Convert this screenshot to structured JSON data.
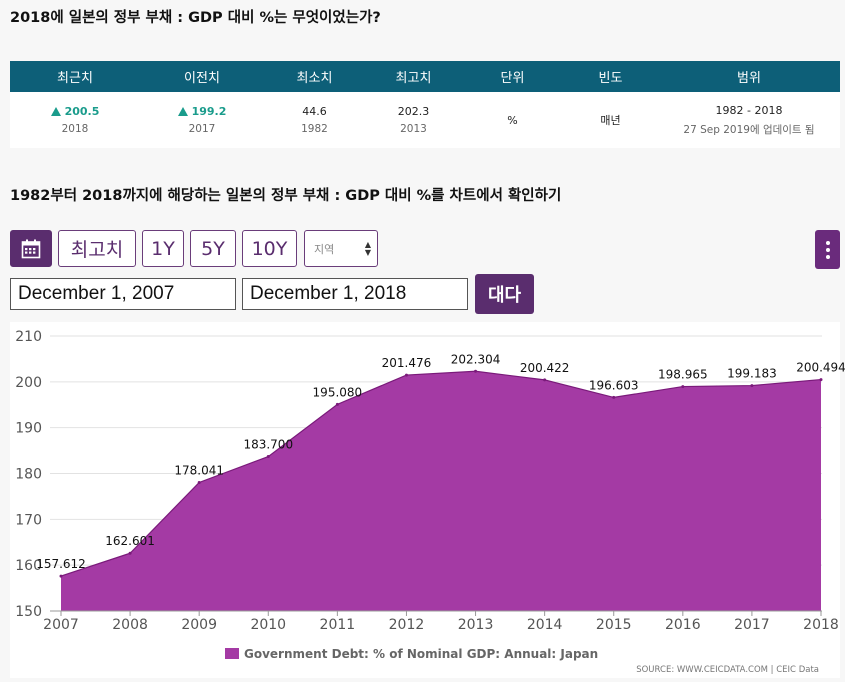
{
  "question_title": "2018에 일본의 정부 부채 : GDP 대비 %는 무엇이었는가?",
  "stats": {
    "headers": [
      "최근치",
      "이전치",
      "최소치",
      "최고치",
      "단위",
      "빈도",
      "범위"
    ],
    "latest": {
      "value": "200.5",
      "year": "2018"
    },
    "previous": {
      "value": "199.2",
      "year": "2017"
    },
    "min": {
      "value": "44.6",
      "year": "1982"
    },
    "max": {
      "value": "202.3",
      "year": "2013"
    },
    "unit": "%",
    "frequency": "매년",
    "range": {
      "span": "1982 - 2018",
      "updated": "27 Sep 2019에 업데이트 됨"
    }
  },
  "chart_heading": "1982부터 2018까지에 해당하는 일본의 정부 부채 : GDP 대비 %를 차트에서 확인하기",
  "controls": {
    "latest_label": "최고치",
    "one_year": "1Y",
    "five_year": "5Y",
    "ten_year": "10Y",
    "region_placeholder": "지역",
    "start_date": "December 1, 2007",
    "end_date": "December 1, 2018",
    "go_label": "대다"
  },
  "colors": {
    "header": "#0d5f78",
    "accent": "#5a2d6e",
    "area": "#a43aa4",
    "area_line": "#7a1a7a",
    "up": "#1a9c8c"
  },
  "chart_data": {
    "type": "area",
    "x": [
      "2007",
      "2008",
      "2009",
      "2010",
      "2011",
      "2012",
      "2013",
      "2014",
      "2015",
      "2016",
      "2017",
      "2018"
    ],
    "series": [
      {
        "name": "Government Debt: % of Nominal GDP: Annual: Japan",
        "values": [
          157.612,
          162.601,
          178.041,
          183.7,
          195.08,
          201.476,
          202.304,
          200.422,
          196.603,
          198.965,
          199.183,
          200.494
        ]
      }
    ],
    "data_labels": [
      "157.612",
      "162.601",
      "178.041",
      "183.700",
      "195.080",
      "201.476",
      "202.304",
      "200.422",
      "196.603",
      "198.965",
      "199.183",
      "200.494"
    ],
    "ylim": [
      150,
      210
    ],
    "yticks": [
      "150",
      "160",
      "170",
      "180",
      "190",
      "200",
      "210"
    ],
    "grid": true,
    "legend_position": "bottom-center",
    "source": "SOURCE: WWW.CEICDATA.COM | CEIC Data"
  }
}
